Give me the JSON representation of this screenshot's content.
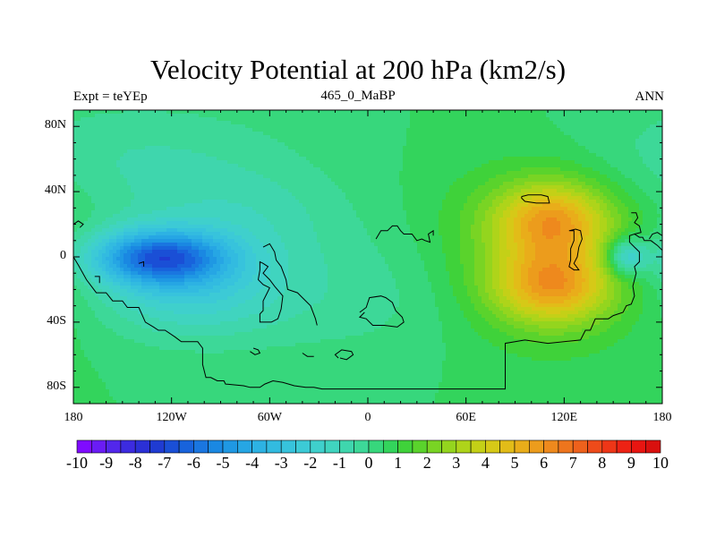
{
  "chart_data": {
    "type": "heatmap",
    "title": "Velocity Potential at 200 hPa (km2/s)",
    "subtitle_left": "Expt = teYEp",
    "subtitle_center": "465_0_MaBP",
    "subtitle_right": "ANN",
    "x_ticks": [
      {
        "value": -180,
        "label": "180"
      },
      {
        "value": -120,
        "label": "120W"
      },
      {
        "value": -60,
        "label": "60W"
      },
      {
        "value": 0,
        "label": "0"
      },
      {
        "value": 60,
        "label": "60E"
      },
      {
        "value": 120,
        "label": "120E"
      },
      {
        "value": 180,
        "label": "180"
      }
    ],
    "y_ticks": [
      {
        "value": 80,
        "label": "80N"
      },
      {
        "value": 40,
        "label": "40N"
      },
      {
        "value": 0,
        "label": "0"
      },
      {
        "value": -40,
        "label": "40S"
      },
      {
        "value": -80,
        "label": "80S"
      }
    ],
    "xlim": [
      -180,
      180
    ],
    "ylim": [
      -90,
      90
    ],
    "levels": [
      -10,
      -9.5,
      -9,
      -8.5,
      -8,
      -7.5,
      -7,
      -6.5,
      -6,
      -5.5,
      -5,
      -4.5,
      -4,
      -3.5,
      -3,
      -2.5,
      -2,
      -1.5,
      -1,
      -0.5,
      0,
      0.5,
      1,
      1.5,
      2,
      2.5,
      3,
      3.5,
      4,
      4.5,
      5,
      5.5,
      6,
      6.5,
      7,
      7.5,
      8,
      8.5,
      9,
      9.5,
      10
    ],
    "colorbar_labels": [
      "-10",
      "-9",
      "-8",
      "-7",
      "-6",
      "-5",
      "-4",
      "-3",
      "-2",
      "-1",
      "0",
      "1",
      "2",
      "3",
      "4",
      "5",
      "6",
      "7",
      "8",
      "9",
      "10"
    ],
    "colors": [
      "#7f0bff",
      "#6a1cf5",
      "#5227eb",
      "#3c2be0",
      "#2b30d6",
      "#1f3bd2",
      "#1a4fd6",
      "#1863dc",
      "#1a76e0",
      "#1a88e2",
      "#1f98e3",
      "#26a6e4",
      "#2db2e3",
      "#32bbe0",
      "#37c3dc",
      "#3ccad6",
      "#3fd0cc",
      "#40d4bf",
      "#3fd6ad",
      "#3dd898",
      "#37d77c",
      "#33d45c",
      "#3fd23a",
      "#5ad32c",
      "#79d424",
      "#94d51e",
      "#aed41a",
      "#c4d017",
      "#d6c917",
      "#e2bc18",
      "#e9ad1a",
      "#ec9c1c",
      "#ee891d",
      "#ee751d",
      "#ee611c",
      "#ee4b1a",
      "#ee3617",
      "#ed2214",
      "#e81511",
      "#d9100e"
    ],
    "field_centers": [
      {
        "lon": -128,
        "lat": 0,
        "amp": -5.8,
        "sx": 30,
        "sy": 12
      },
      {
        "lon": -110,
        "lat": -20,
        "amp": -2.2,
        "sx": 40,
        "sy": 20
      },
      {
        "lon": -80,
        "lat": 25,
        "amp": -1.0,
        "sx": 45,
        "sy": 20
      },
      {
        "lon": 0,
        "lat": -20,
        "amp": -0.8,
        "sx": 80,
        "sy": 30
      },
      {
        "lon": -140,
        "lat": 60,
        "amp": -1.0,
        "sx": 70,
        "sy": 25
      },
      {
        "lon": 113,
        "lat": 23,
        "amp": 3.8,
        "sx": 24,
        "sy": 16
      },
      {
        "lon": 113,
        "lat": -18,
        "amp": 3.9,
        "sx": 25,
        "sy": 16
      },
      {
        "lon": 105,
        "lat": 0,
        "amp": 2.2,
        "sx": 45,
        "sy": 38
      },
      {
        "lon": 158,
        "lat": 0,
        "amp": -3.2,
        "sx": 9,
        "sy": 8
      }
    ],
    "field_base": 0.5,
    "coastline_lines": [
      [
        [
          -180,
          20
        ],
        [
          -177,
          22
        ],
        [
          -174,
          20
        ],
        [
          -176,
          18
        ]
      ],
      [
        [
          -180,
          0
        ],
        [
          -177,
          -5
        ],
        [
          -172,
          -14
        ],
        [
          -166,
          -22
        ],
        [
          -160,
          -22
        ],
        [
          -156,
          -27
        ],
        [
          -150,
          -27
        ],
        [
          -147,
          -31
        ],
        [
          -140,
          -31
        ],
        [
          -136,
          -40
        ],
        [
          -131,
          -43
        ],
        [
          -128,
          -45
        ],
        [
          -124,
          -45
        ],
        [
          -118,
          -49
        ],
        [
          -114,
          -52
        ],
        [
          -110,
          -52
        ],
        [
          -104,
          -52
        ],
        [
          -101,
          -56
        ],
        [
          -101,
          -66
        ],
        [
          -99,
          -74
        ],
        [
          -96,
          -74
        ],
        [
          -92,
          -76
        ],
        [
          -88,
          -76
        ],
        [
          -87,
          -78
        ],
        [
          -76,
          -79
        ],
        [
          -72,
          -80
        ],
        [
          -66,
          -80
        ],
        [
          -63,
          -78
        ],
        [
          -58,
          -76
        ],
        [
          -52,
          -77
        ],
        [
          -45,
          -79
        ],
        [
          -38,
          -80
        ],
        [
          -33,
          -80
        ],
        [
          -28,
          -81
        ],
        [
          -10,
          -81
        ],
        [
          20,
          -81
        ],
        [
          50,
          -81
        ],
        [
          84,
          -81
        ],
        [
          84,
          -53
        ],
        [
          96,
          -51
        ],
        [
          110,
          -53
        ],
        [
          130,
          -51
        ],
        [
          133,
          -45
        ],
        [
          136,
          -45
        ],
        [
          139,
          -38
        ],
        [
          147,
          -38
        ],
        [
          150,
          -36
        ],
        [
          156,
          -34
        ],
        [
          158,
          -30
        ],
        [
          161,
          -29
        ],
        [
          163,
          -24
        ],
        [
          162,
          -18
        ],
        [
          164,
          -10
        ],
        [
          163,
          -6
        ],
        [
          166,
          -3
        ],
        [
          166,
          3
        ],
        [
          163,
          6
        ],
        [
          160,
          9
        ],
        [
          160,
          13
        ],
        [
          163,
          14
        ],
        [
          166,
          12
        ],
        [
          168,
          12
        ],
        [
          169,
          10
        ],
        [
          173,
          10
        ],
        [
          177,
          7
        ],
        [
          180,
          4
        ]
      ],
      [
        [
          -64,
          -40
        ],
        [
          -59,
          -40
        ],
        [
          -55,
          -38
        ],
        [
          -53,
          -32
        ],
        [
          -52,
          -24
        ],
        [
          -57,
          -18
        ],
        [
          -60,
          -14
        ],
        [
          -64,
          -10
        ],
        [
          -61,
          -6
        ],
        [
          -64,
          -4
        ],
        [
          -66,
          -3
        ],
        [
          -66,
          -8
        ],
        [
          -67,
          -14
        ],
        [
          -64,
          -17
        ],
        [
          -60,
          -19
        ],
        [
          -62,
          -23
        ],
        [
          -64,
          -27
        ],
        [
          -64,
          -33
        ],
        [
          -66,
          -35
        ],
        [
          -66,
          -40
        ],
        [
          -64,
          -40
        ]
      ],
      [
        [
          -64,
          6
        ],
        [
          -60,
          8
        ],
        [
          -57,
          3
        ],
        [
          -56,
          -2
        ],
        [
          -53,
          -6
        ],
        [
          -50,
          -14
        ],
        [
          -49,
          -20
        ],
        [
          -43,
          -22
        ],
        [
          -40,
          -25
        ],
        [
          -35,
          -30
        ],
        [
          -32,
          -38
        ],
        [
          -31,
          -42
        ]
      ],
      [
        [
          -5,
          -34
        ],
        [
          -1,
          -31
        ],
        [
          1,
          -25
        ],
        [
          8,
          -24
        ],
        [
          11,
          -25
        ],
        [
          15,
          -28
        ],
        [
          17,
          -33
        ],
        [
          21,
          -37
        ],
        [
          22,
          -40
        ],
        [
          18,
          -43
        ],
        [
          10,
          -42
        ],
        [
          3,
          -42
        ],
        [
          -1,
          -38
        ],
        [
          -5,
          -37
        ],
        [
          -2,
          -34
        ]
      ],
      [
        [
          5,
          11
        ],
        [
          8,
          16
        ],
        [
          12,
          16
        ],
        [
          15,
          19
        ],
        [
          18,
          19
        ],
        [
          20,
          16
        ],
        [
          22,
          14
        ],
        [
          27,
          14
        ],
        [
          30,
          10
        ],
        [
          33,
          11
        ],
        [
          35,
          10
        ],
        [
          38,
          9
        ],
        [
          37,
          14
        ],
        [
          40,
          16
        ],
        [
          40,
          13
        ]
      ],
      [
        [
          94,
          37
        ],
        [
          98,
          38
        ],
        [
          106,
          38
        ],
        [
          110,
          37
        ],
        [
          111,
          33
        ],
        [
          103,
          33
        ],
        [
          96,
          34
        ],
        [
          94,
          36
        ],
        [
          94,
          37
        ]
      ],
      [
        [
          123,
          16
        ],
        [
          126,
          16
        ],
        [
          126,
          10
        ],
        [
          124,
          5
        ],
        [
          124,
          -2
        ],
        [
          123,
          -6
        ],
        [
          126,
          -8
        ],
        [
          129,
          -8
        ],
        [
          126,
          -4
        ],
        [
          128,
          0
        ],
        [
          129,
          6
        ],
        [
          131,
          11
        ],
        [
          130,
          16
        ],
        [
          127,
          17
        ],
        [
          123,
          16
        ]
      ],
      [
        [
          161,
          27
        ],
        [
          164,
          27
        ],
        [
          165,
          24
        ],
        [
          163,
          21
        ],
        [
          166,
          19
        ],
        [
          167,
          15
        ],
        [
          163,
          14
        ]
      ],
      [
        [
          172,
          11
        ],
        [
          174,
          14
        ],
        [
          177,
          15
        ],
        [
          180,
          13
        ]
      ],
      [
        [
          -72,
          -58
        ],
        [
          -69,
          -60
        ],
        [
          -66,
          -59
        ],
        [
          -67,
          -57
        ],
        [
          -70,
          -56
        ]
      ],
      [
        [
          -40,
          -59
        ],
        [
          -37,
          -61
        ],
        [
          -33,
          -61
        ]
      ],
      [
        [
          -17,
          -62
        ],
        [
          -13,
          -63
        ],
        [
          -9,
          -60
        ],
        [
          -10,
          -58
        ],
        [
          -16,
          -57
        ],
        [
          -20,
          -60
        ],
        [
          -18,
          -62
        ]
      ],
      [
        [
          -140,
          -4
        ],
        [
          -137,
          -3
        ],
        [
          -137,
          -6
        ]
      ],
      [
        [
          -167,
          -12
        ],
        [
          -164,
          -12
        ],
        [
          -164,
          -16
        ]
      ]
    ]
  }
}
